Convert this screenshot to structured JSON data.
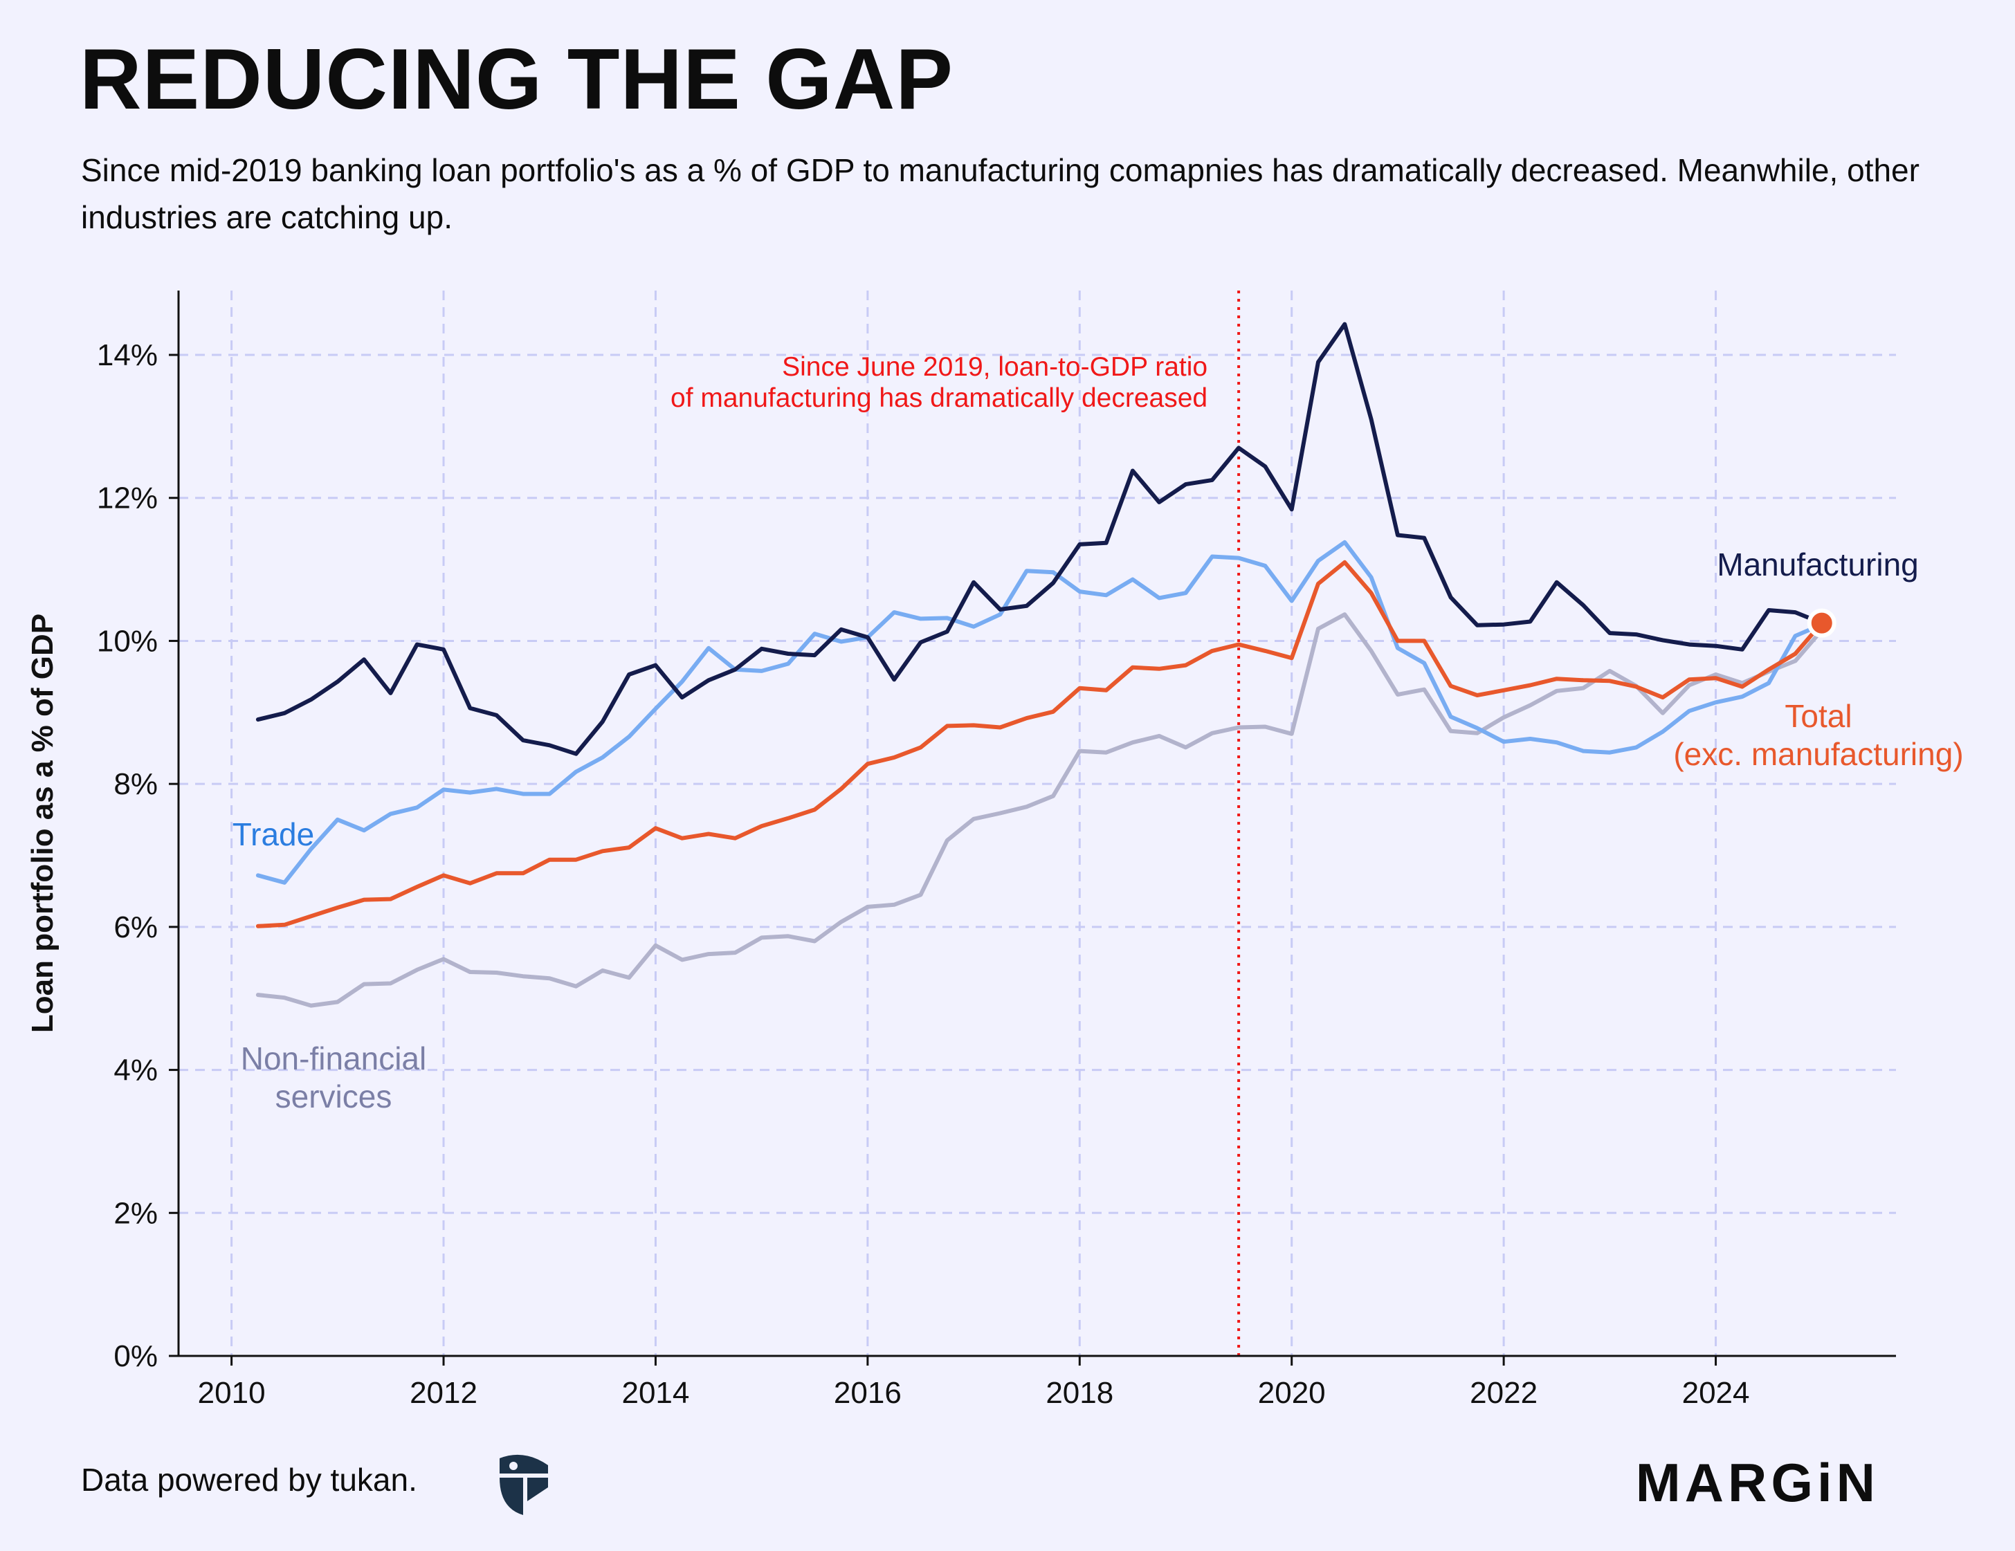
{
  "header": {
    "title": "REDUCING THE GAP",
    "subtitle": "Since mid-2019 banking loan portfolio's as a % of GDP to manufacturing comapnies has dramatically decreased. Meanwhile, other industries are catching up."
  },
  "footer": {
    "source": "Data powered by tukan.",
    "source_icon": "tukan-logo-icon",
    "brand": "MARGiN"
  },
  "colors": {
    "background": "#f2f2fe",
    "grid": "#c8cbf5",
    "manufacturing": "#141c4c",
    "trade": "#78acf2",
    "total": "#e8582c",
    "non_financial": "#b2b3cc",
    "annotation": "#f01818",
    "trade_label": "#2b7de0",
    "non_financial_label": "#7b7fa6"
  },
  "chart_data": {
    "type": "line",
    "ylabel": "Loan portfolio as a % of GDP",
    "xlabel": "",
    "xlim": [
      2009.5,
      2025.7
    ],
    "ylim": [
      0,
      14.9
    ],
    "xticks": [
      2010,
      2012,
      2014,
      2016,
      2018,
      2020,
      2022,
      2024
    ],
    "xtick_labels": [
      "2010",
      "2012",
      "2014",
      "2016",
      "2018",
      "2020",
      "2022",
      "2024"
    ],
    "yticks": [
      0,
      2,
      4,
      6,
      8,
      10,
      12,
      14
    ],
    "ytick_labels": [
      "0%",
      "2%",
      "4%",
      "6%",
      "8%",
      "10%",
      "12%",
      "14%"
    ],
    "grid": true,
    "x": [
      2010.25,
      2010.5,
      2010.75,
      2011.0,
      2011.25,
      2011.5,
      2011.75,
      2012.0,
      2012.25,
      2012.5,
      2012.75,
      2013.0,
      2013.25,
      2013.5,
      2013.75,
      2014.0,
      2014.25,
      2014.5,
      2014.75,
      2015.0,
      2015.25,
      2015.5,
      2015.75,
      2016.0,
      2016.25,
      2016.5,
      2016.75,
      2017.0,
      2017.25,
      2017.5,
      2017.75,
      2018.0,
      2018.25,
      2018.5,
      2018.75,
      2019.0,
      2019.25,
      2019.5,
      2019.75,
      2020.0,
      2020.25,
      2020.5,
      2020.75,
      2021.0,
      2021.25,
      2021.5,
      2021.75,
      2022.0,
      2022.25,
      2022.5,
      2022.75,
      2023.0,
      2023.25,
      2023.5,
      2023.75,
      2024.0,
      2024.25,
      2024.5,
      2024.75,
      2025.0
    ],
    "series": [
      {
        "name": "Manufacturing",
        "key": "manufacturing",
        "values": [
          8.9,
          8.99,
          9.18,
          9.43,
          9.74,
          9.27,
          9.95,
          9.88,
          9.06,
          8.96,
          8.61,
          8.54,
          8.42,
          8.87,
          9.53,
          9.66,
          9.21,
          9.45,
          9.6,
          9.89,
          9.82,
          9.8,
          10.16,
          10.05,
          9.46,
          9.98,
          10.13,
          10.82,
          10.44,
          10.49,
          10.81,
          11.35,
          11.37,
          12.38,
          11.94,
          12.19,
          12.25,
          12.7,
          12.44,
          11.84,
          13.9,
          14.43,
          13.1,
          11.48,
          11.44,
          10.61,
          10.22,
          10.23,
          10.27,
          10.82,
          10.5,
          10.11,
          10.09,
          10.01,
          9.95,
          9.93,
          9.88,
          10.43,
          10.4,
          10.25
        ]
      },
      {
        "name": "Trade",
        "key": "trade",
        "values": [
          6.72,
          6.62,
          7.09,
          7.5,
          7.35,
          7.58,
          7.67,
          7.92,
          7.88,
          7.93,
          7.86,
          7.86,
          8.17,
          8.37,
          8.66,
          9.05,
          9.43,
          9.9,
          9.6,
          9.58,
          9.68,
          10.1,
          9.99,
          10.05,
          10.4,
          10.31,
          10.32,
          10.2,
          10.37,
          10.98,
          10.96,
          10.69,
          10.64,
          10.86,
          10.6,
          10.67,
          11.18,
          11.16,
          11.05,
          10.56,
          11.12,
          11.38,
          10.89,
          9.9,
          9.69,
          8.94,
          8.78,
          8.59,
          8.63,
          8.58,
          8.46,
          8.44,
          8.51,
          8.73,
          9.02,
          9.14,
          9.22,
          9.41,
          10.07,
          10.23
        ]
      },
      {
        "name": "Total (exc. manufacturing)",
        "key": "total",
        "values": [
          6.01,
          6.03,
          6.15,
          6.27,
          6.38,
          6.39,
          6.56,
          6.72,
          6.61,
          6.75,
          6.75,
          6.94,
          6.94,
          7.06,
          7.11,
          7.38,
          7.24,
          7.3,
          7.24,
          7.41,
          7.52,
          7.64,
          7.93,
          8.28,
          8.37,
          8.51,
          8.81,
          8.82,
          8.79,
          8.92,
          9.01,
          9.34,
          9.31,
          9.63,
          9.61,
          9.66,
          9.86,
          9.95,
          9.86,
          9.76,
          10.8,
          11.1,
          10.67,
          10.0,
          10.0,
          9.37,
          9.24,
          9.31,
          9.38,
          9.47,
          9.45,
          9.44,
          9.36,
          9.21,
          9.46,
          9.48,
          9.36,
          9.6,
          9.82,
          10.25
        ]
      },
      {
        "name": "Non-financial services",
        "key": "non_financial",
        "values": [
          5.05,
          5.01,
          4.9,
          4.95,
          5.2,
          5.21,
          5.4,
          5.55,
          5.37,
          5.36,
          5.31,
          5.28,
          5.17,
          5.39,
          5.29,
          5.74,
          5.54,
          5.62,
          5.64,
          5.85,
          5.87,
          5.8,
          6.07,
          6.28,
          6.31,
          6.45,
          7.21,
          7.51,
          7.59,
          7.68,
          7.83,
          8.46,
          8.44,
          8.58,
          8.67,
          8.51,
          8.71,
          8.79,
          8.8,
          8.7,
          10.17,
          10.37,
          9.86,
          9.25,
          9.32,
          8.74,
          8.71,
          8.93,
          9.1,
          9.3,
          9.34,
          9.58,
          9.37,
          8.99,
          9.38,
          9.53,
          9.41,
          9.57,
          9.72,
          10.15
        ]
      }
    ],
    "series_labels": {
      "manufacturing": "Manufacturing",
      "trade": "Trade",
      "total_line1": "Total",
      "total_line2": "(exc. manufacturing)",
      "non_financial_line1": "Non-financial",
      "non_financial_line2": "services"
    },
    "endpoint": {
      "x": 2025.0,
      "y": 10.25
    },
    "annotation": {
      "x": 2019.5,
      "line1": "Since June 2019, loan-to-GDP ratio",
      "line2": "of manufacturing has dramatically decreased"
    }
  }
}
